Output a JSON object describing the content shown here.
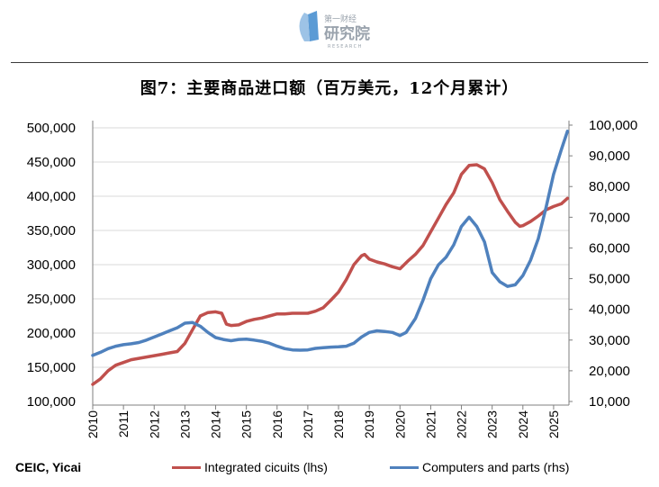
{
  "logo": {
    "line1": "第一财经",
    "line2": "研究院",
    "line3": "RESEARCH"
  },
  "title": "图7：主要商品进口额（百万美元，12个月累计）",
  "source": "CEIC, Yicai",
  "chart_data": {
    "type": "line",
    "title": "图7：主要商品进口额（百万美元，12个月累计）",
    "xlabel": "",
    "ylabel": "",
    "x_tick_labels": [
      "2010",
      "2011",
      "2012",
      "2013",
      "2014",
      "2015",
      "2016",
      "2017",
      "2018",
      "2019",
      "2020",
      "2021",
      "2022",
      "2023",
      "2024",
      "2025"
    ],
    "left_axis": {
      "ylim": [
        100000,
        500000
      ],
      "ticks": [
        "100,000",
        "150,000",
        "200,000",
        "250,000",
        "300,000",
        "350,000",
        "400,000",
        "450,000",
        "500,000"
      ]
    },
    "right_axis": {
      "ylim": [
        10000,
        100000
      ],
      "ticks": [
        "10,000",
        "20,000",
        "30,000",
        "40,000",
        "50,000",
        "60,000",
        "70,000",
        "80,000",
        "90,000",
        "100,000"
      ]
    },
    "grid": "horizontal",
    "legend_position": "bottom",
    "series": [
      {
        "name": "Integrated cicuits (lhs)",
        "axis": "left",
        "color": "#c0504d",
        "points": [
          [
            2010.0,
            125000
          ],
          [
            2010.25,
            133000
          ],
          [
            2010.5,
            145000
          ],
          [
            2010.75,
            153000
          ],
          [
            2011.0,
            157000
          ],
          [
            2011.25,
            161000
          ],
          [
            2011.5,
            163000
          ],
          [
            2011.75,
            165000
          ],
          [
            2012.0,
            167000
          ],
          [
            2012.25,
            169000
          ],
          [
            2012.5,
            171000
          ],
          [
            2012.75,
            173000
          ],
          [
            2013.0,
            185000
          ],
          [
            2013.25,
            205000
          ],
          [
            2013.5,
            225000
          ],
          [
            2013.75,
            230000
          ],
          [
            2014.0,
            231000
          ],
          [
            2014.2,
            229000
          ],
          [
            2014.35,
            213000
          ],
          [
            2014.5,
            211000
          ],
          [
            2014.75,
            212000
          ],
          [
            2015.0,
            217000
          ],
          [
            2015.25,
            220000
          ],
          [
            2015.5,
            222000
          ],
          [
            2015.75,
            225000
          ],
          [
            2016.0,
            228000
          ],
          [
            2016.25,
            228000
          ],
          [
            2016.5,
            229000
          ],
          [
            2016.75,
            229000
          ],
          [
            2017.0,
            229000
          ],
          [
            2017.25,
            232000
          ],
          [
            2017.5,
            237000
          ],
          [
            2017.75,
            248000
          ],
          [
            2018.0,
            260000
          ],
          [
            2018.25,
            278000
          ],
          [
            2018.5,
            300000
          ],
          [
            2018.75,
            313000
          ],
          [
            2018.85,
            315000
          ],
          [
            2019.0,
            308000
          ],
          [
            2019.25,
            304000
          ],
          [
            2019.5,
            301000
          ],
          [
            2019.75,
            297000
          ],
          [
            2020.0,
            294000
          ],
          [
            2020.25,
            305000
          ],
          [
            2020.5,
            315000
          ],
          [
            2020.75,
            328000
          ],
          [
            2021.0,
            348000
          ],
          [
            2021.25,
            368000
          ],
          [
            2021.5,
            388000
          ],
          [
            2021.75,
            405000
          ],
          [
            2022.0,
            432000
          ],
          [
            2022.25,
            445000
          ],
          [
            2022.5,
            446000
          ],
          [
            2022.75,
            440000
          ],
          [
            2023.0,
            420000
          ],
          [
            2023.25,
            395000
          ],
          [
            2023.5,
            378000
          ],
          [
            2023.75,
            362000
          ],
          [
            2023.9,
            356000
          ],
          [
            2024.0,
            357000
          ],
          [
            2024.25,
            363000
          ],
          [
            2024.5,
            371000
          ],
          [
            2024.75,
            380000
          ],
          [
            2025.0,
            385000
          ],
          [
            2025.25,
            389000
          ],
          [
            2025.45,
            397000
          ]
        ]
      },
      {
        "name": "Computers and parts (rhs)",
        "axis": "right",
        "color": "#4f81bd",
        "points": [
          [
            2010.0,
            25000
          ],
          [
            2010.25,
            26000
          ],
          [
            2010.5,
            27200
          ],
          [
            2010.75,
            28000
          ],
          [
            2011.0,
            28500
          ],
          [
            2011.25,
            28800
          ],
          [
            2011.5,
            29200
          ],
          [
            2011.75,
            30000
          ],
          [
            2012.0,
            31000
          ],
          [
            2012.25,
            32000
          ],
          [
            2012.5,
            33000
          ],
          [
            2012.75,
            34000
          ],
          [
            2013.0,
            35500
          ],
          [
            2013.25,
            35700
          ],
          [
            2013.5,
            34500
          ],
          [
            2013.75,
            32500
          ],
          [
            2014.0,
            30800
          ],
          [
            2014.25,
            30200
          ],
          [
            2014.5,
            29800
          ],
          [
            2014.75,
            30200
          ],
          [
            2015.0,
            30300
          ],
          [
            2015.25,
            30000
          ],
          [
            2015.5,
            29600
          ],
          [
            2015.75,
            29000
          ],
          [
            2016.0,
            28000
          ],
          [
            2016.25,
            27200
          ],
          [
            2016.5,
            26800
          ],
          [
            2016.75,
            26700
          ],
          [
            2017.0,
            26800
          ],
          [
            2017.25,
            27300
          ],
          [
            2017.5,
            27500
          ],
          [
            2017.75,
            27700
          ],
          [
            2018.0,
            27800
          ],
          [
            2018.25,
            28000
          ],
          [
            2018.5,
            29000
          ],
          [
            2018.75,
            31000
          ],
          [
            2019.0,
            32500
          ],
          [
            2019.25,
            33000
          ],
          [
            2019.5,
            32800
          ],
          [
            2019.75,
            32500
          ],
          [
            2020.0,
            31500
          ],
          [
            2020.2,
            32500
          ],
          [
            2020.5,
            37000
          ],
          [
            2020.75,
            43000
          ],
          [
            2021.0,
            50000
          ],
          [
            2021.25,
            54500
          ],
          [
            2021.5,
            57000
          ],
          [
            2021.75,
            61000
          ],
          [
            2022.0,
            67000
          ],
          [
            2022.25,
            70000
          ],
          [
            2022.5,
            67000
          ],
          [
            2022.75,
            62000
          ],
          [
            2023.0,
            52000
          ],
          [
            2023.25,
            49000
          ],
          [
            2023.5,
            47500
          ],
          [
            2023.75,
            48000
          ],
          [
            2024.0,
            51000
          ],
          [
            2024.25,
            56000
          ],
          [
            2024.5,
            63000
          ],
          [
            2024.75,
            73000
          ],
          [
            2025.0,
            84000
          ],
          [
            2025.25,
            92000
          ],
          [
            2025.45,
            98000
          ]
        ]
      }
    ]
  }
}
